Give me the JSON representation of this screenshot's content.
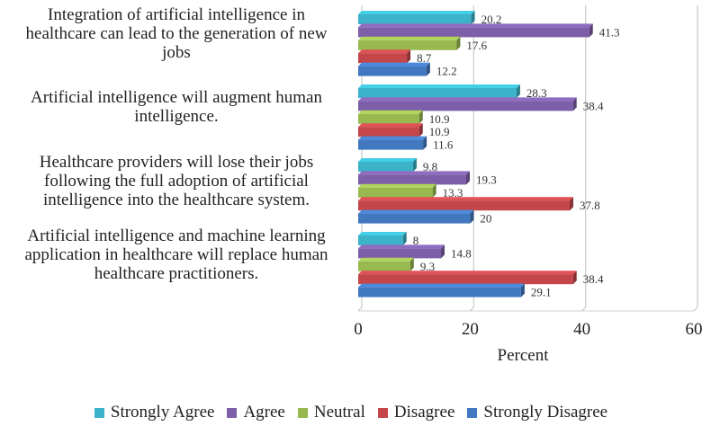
{
  "chart_data": {
    "type": "bar",
    "orientation": "horizontal",
    "categories": [
      "Integration of artificial intelligence in healthcare can lead to the generation of new jobs",
      "Artificial intelligence will augment human intelligence.",
      "Healthcare providers will lose their jobs following the full adoption of artificial intelligence into the healthcare system.",
      "Artificial intelligence and machine learning application in healthcare will replace human healthcare practitioners."
    ],
    "category_lines": [
      [
        "Integration of artificial intelligence in",
        "healthcare can lead to the generation of new",
        "jobs"
      ],
      [
        "Artificial intelligence will augment human",
        "intelligence."
      ],
      [
        "Healthcare providers will lose their jobs",
        "following the full adoption of artificial",
        "intelligence into the healthcare system."
      ],
      [
        "Artificial intelligence and machine learning",
        "application in healthcare will replace human",
        "healthcare practitioners."
      ]
    ],
    "series": [
      {
        "name": "Strongly Agree",
        "color": "#3cb3c9",
        "values": [
          20.2,
          28.3,
          9.8,
          8
        ],
        "labels": [
          "20.2",
          "28.3",
          "9.8",
          "8"
        ]
      },
      {
        "name": "Agree",
        "color": "#7d5ea8",
        "values": [
          41.3,
          38.4,
          19.3,
          14.8
        ],
        "labels": [
          "41.3",
          "38.4",
          "19.3",
          "14.8"
        ]
      },
      {
        "name": "Neutral",
        "color": "#98b94f",
        "values": [
          17.6,
          10.9,
          13.3,
          9.3
        ],
        "labels": [
          "17.6",
          "10.9",
          "13.3",
          "9.3"
        ]
      },
      {
        "name": "Disagree",
        "color": "#c4464a",
        "values": [
          8.7,
          10.9,
          37.8,
          38.4
        ],
        "labels": [
          "8.7",
          "10.9",
          "37.8",
          "38.4"
        ]
      },
      {
        "name": "Strongly Disagree",
        "color": "#4178c0",
        "values": [
          12.2,
          11.6,
          20,
          29.1
        ],
        "labels": [
          "12.2",
          "11.6",
          "20",
          "29.1"
        ]
      }
    ],
    "xlim": [
      0,
      60
    ],
    "x_ticks": [
      0,
      20,
      40,
      60
    ],
    "xlabel": "Percent",
    "ylabel": "",
    "grid": true,
    "legend_position": "bottom"
  }
}
